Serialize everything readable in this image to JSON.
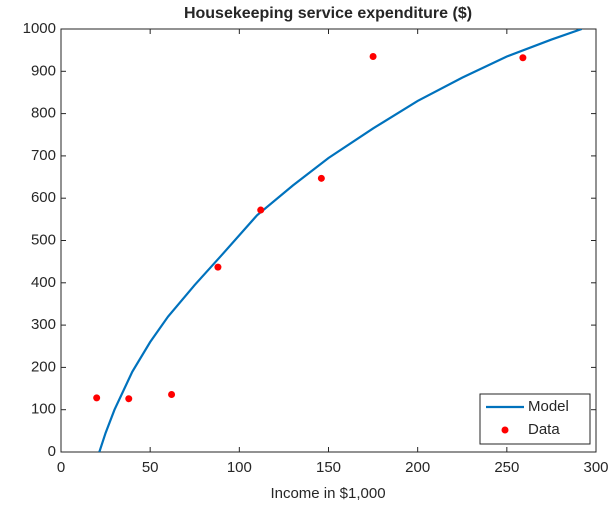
{
  "chart_data": {
    "type": "scatter",
    "title": "Housekeeping service expenditure ($)",
    "xlabel": "Income in $1,000",
    "xlim": [
      0,
      300
    ],
    "xticks": [
      0,
      50,
      100,
      150,
      200,
      250,
      300
    ],
    "ylim": [
      0,
      1000
    ],
    "yticks": [
      0,
      100,
      200,
      300,
      400,
      500,
      600,
      700,
      800,
      900,
      1000
    ],
    "legend": "lower right",
    "series": [
      {
        "name": "Model",
        "type": "line",
        "color": "#0072bd",
        "x": [
          21.5,
          25,
          30,
          40,
          50,
          60,
          75,
          90,
          110,
          130,
          150,
          175,
          200,
          225,
          250,
          275,
          292
        ],
        "values": [
          0,
          45,
          100,
          190,
          260,
          320,
          395,
          465,
          560,
          630,
          695,
          765,
          830,
          885,
          935,
          975,
          1000
        ]
      },
      {
        "name": "Data",
        "type": "scatter",
        "color": "#ff0000",
        "x": [
          20,
          38,
          62,
          88,
          112,
          146,
          175,
          259
        ],
        "values": [
          128,
          126,
          136,
          437,
          572,
          647,
          935,
          932
        ]
      }
    ]
  }
}
